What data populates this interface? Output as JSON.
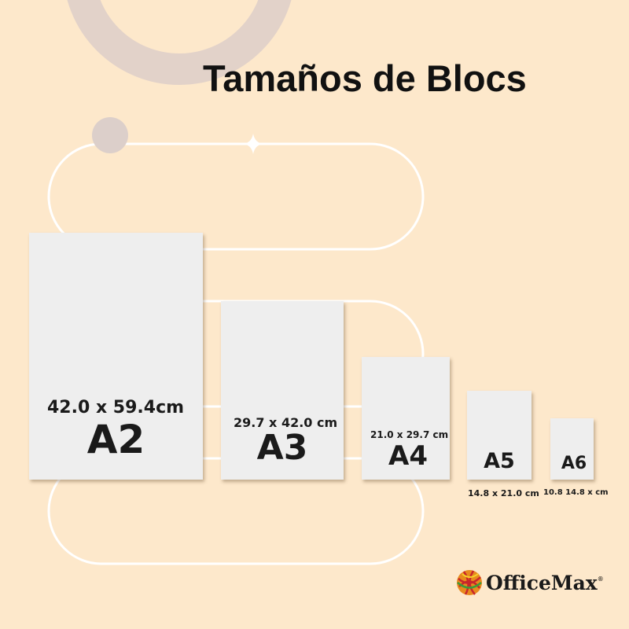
{
  "title": "Tamaños de Blocs",
  "sizes": [
    {
      "name": "A2",
      "dimensions": "42.0 x 59.4cm"
    },
    {
      "name": "A3",
      "dimensions": "29.7 x 42.0 cm"
    },
    {
      "name": "A4",
      "dimensions": "21.0 x 29.7 cm"
    },
    {
      "name": "A5",
      "dimensions": "14.8 x 21.0 cm"
    },
    {
      "name": "A6",
      "dimensions": "10.8 14.8 x cm"
    }
  ],
  "brand": {
    "name": "OfficeMax",
    "registered": "®"
  },
  "colors": {
    "background": "#fde8cb",
    "sheet": "#eeeeee",
    "text": "#111111",
    "decor": "#e0d0c8"
  }
}
